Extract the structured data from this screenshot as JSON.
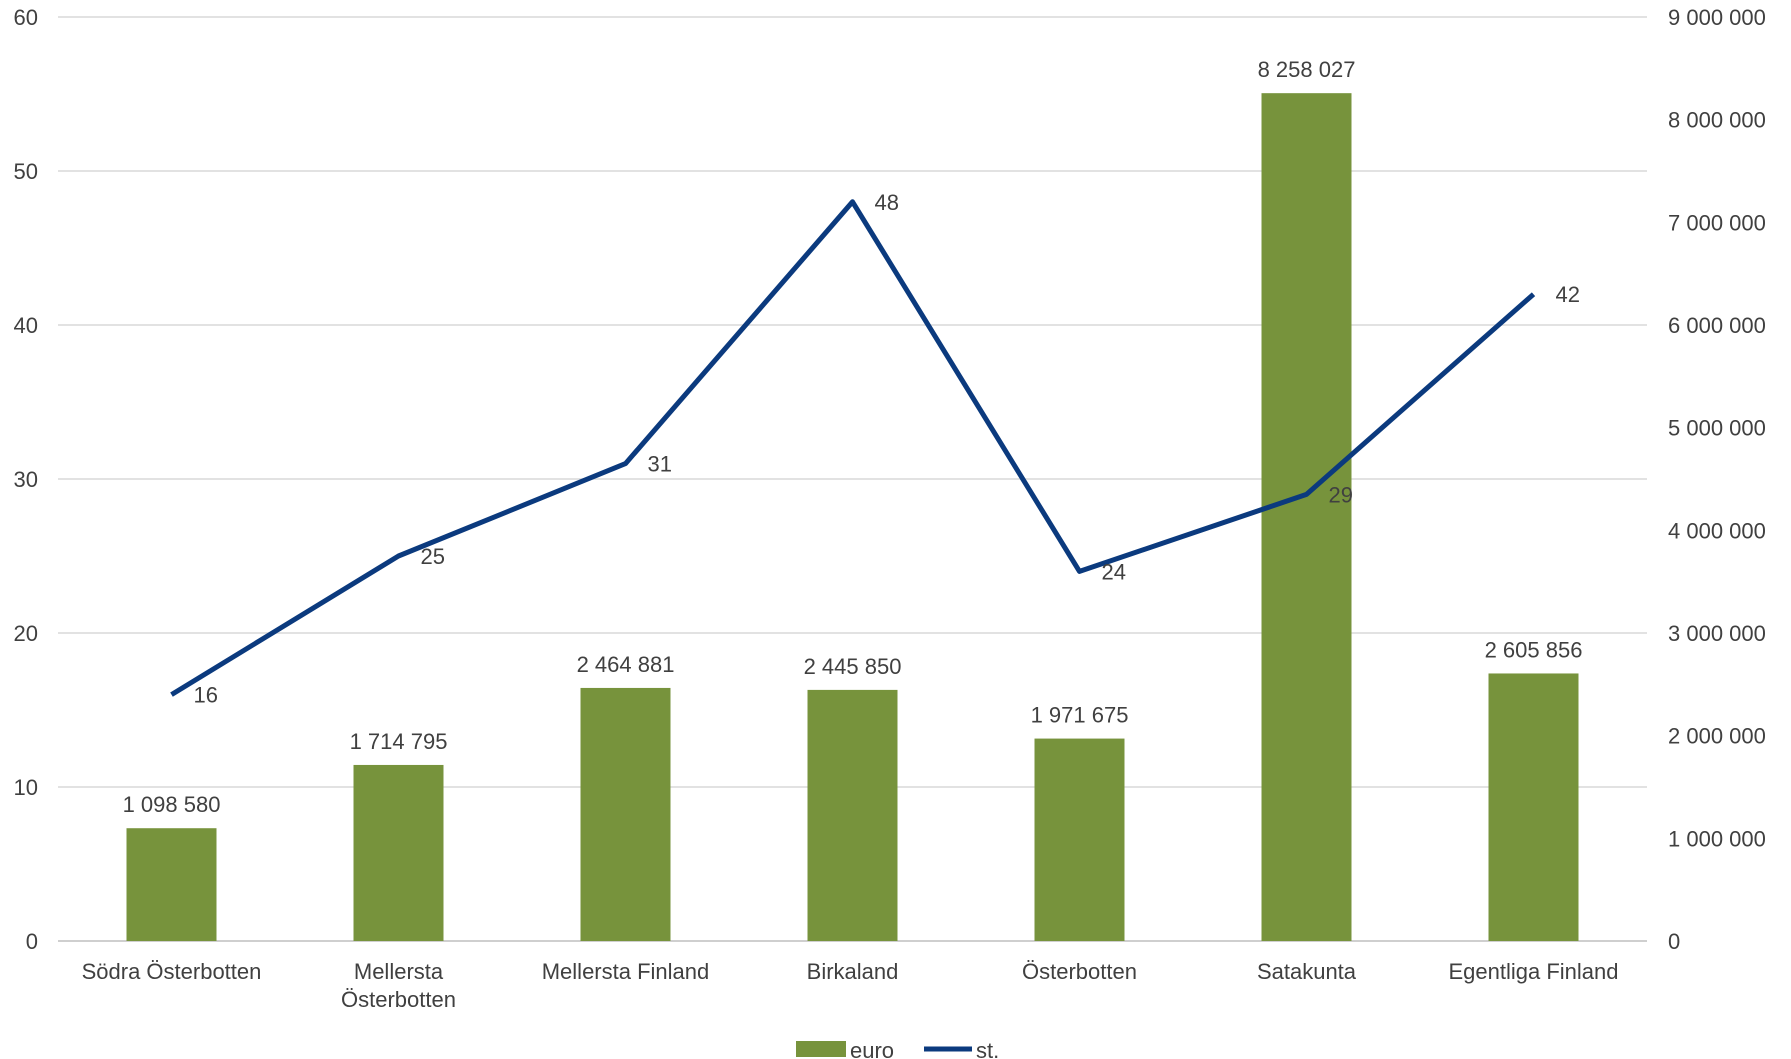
{
  "chart_data": {
    "type": "bar",
    "categories": [
      [
        "Södra Österbotten"
      ],
      [
        "Mellersta",
        "Österbotten"
      ],
      [
        "Mellersta Finland"
      ],
      [
        "Birkaland"
      ],
      [
        "Österbotten"
      ],
      [
        "Satakunta"
      ],
      [
        "Egentliga Finland"
      ]
    ],
    "series": [
      {
        "name": "euro",
        "type": "bar",
        "axis": "right",
        "color": "#77933c",
        "values": [
          1098580,
          1714795,
          2464881,
          2445850,
          1971675,
          8258027,
          2605856
        ],
        "labels": [
          "1 098 580",
          "1 714 795",
          "2 464 881",
          "2 445 850",
          "1 971 675",
          "8 258 027",
          "2 605 856"
        ]
      },
      {
        "name": "st.",
        "type": "line",
        "axis": "left",
        "color": "#0b3a7e",
        "values": [
          16,
          25,
          31,
          48,
          24,
          29,
          42
        ],
        "labels": [
          "16",
          "25",
          "31",
          "48",
          "24",
          "29",
          "42"
        ]
      }
    ],
    "y_left": {
      "range": [
        0,
        60
      ],
      "ticks": [
        0,
        10,
        20,
        30,
        40,
        50,
        60
      ],
      "tick_labels": [
        "0",
        "10",
        "20",
        "30",
        "40",
        "50",
        "60"
      ]
    },
    "y_right": {
      "range": [
        0,
        9000000
      ],
      "ticks": [
        0,
        1000000,
        2000000,
        3000000,
        4000000,
        5000000,
        6000000,
        7000000,
        8000000,
        9000000
      ],
      "tick_labels": [
        "0",
        "1 000 000",
        "2 000 000",
        "3 000 000",
        "4 000 000",
        "5 000 000",
        "6 000 000",
        "7 000 000",
        "8 000 000",
        "9 000 000"
      ]
    },
    "grid": true,
    "legend": {
      "position": "bottom"
    }
  }
}
